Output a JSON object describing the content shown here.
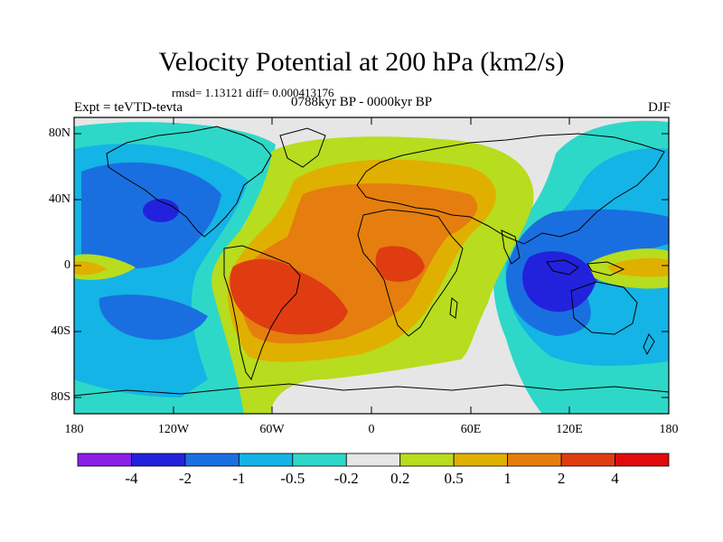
{
  "header": {
    "title": "Velocity Potential at 200 hPa (km2/s)",
    "stats": "rmsd= 1.13121 diff= 0.000413176",
    "period": "0788kyr BP - 0000kyr BP",
    "experiment": "Expt = teVTD-tevta",
    "season": "DJF"
  },
  "map": {
    "y_ticks": [
      "80N",
      "40N",
      "0",
      "40S",
      "80S"
    ],
    "x_ticks": [
      "180",
      "120W",
      "60W",
      "0",
      "60E",
      "120E",
      "180"
    ]
  },
  "colorbar": {
    "labels": [
      "-4",
      "-2",
      "-1",
      "-0.5",
      "-0.2",
      "0.2",
      "0.5",
      "1",
      "2",
      "4"
    ],
    "colors": [
      "#8a1fe8",
      "#2222dd",
      "#1a6fe0",
      "#14b4e6",
      "#2ed8c8",
      "#e6e6e6",
      "#b8dc1e",
      "#e0b000",
      "#e57e0e",
      "#e03c12",
      "#e00c0c"
    ]
  }
}
